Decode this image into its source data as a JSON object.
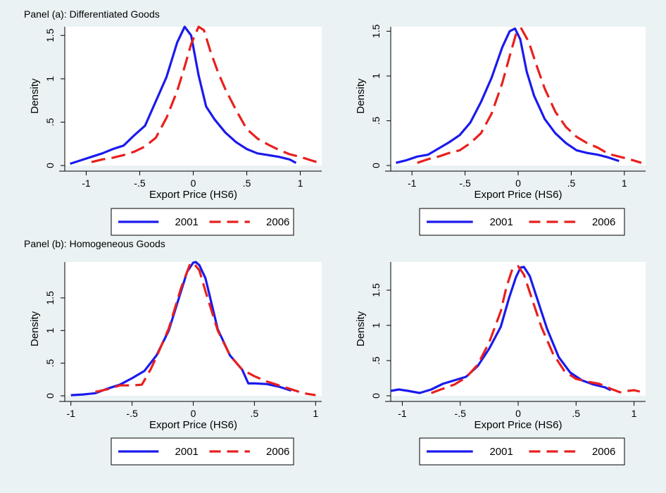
{
  "figure": {
    "panel_a_label": "Panel (a): Differentiated Goods",
    "panel_b_label": "Panel (b): Homogeneous Goods"
  },
  "colors": {
    "s2001": "#1a1aee",
    "s2006": "#e8201e",
    "background": "#eaf2f3",
    "plot_bg": "#ffffff"
  },
  "chart_data": [
    {
      "type": "line",
      "panel": "a",
      "xlabel": "Export Price (HS6)",
      "ylabel": "Density",
      "xticks": [
        -1,
        -0.5,
        0,
        0.5,
        1
      ],
      "xtick_labels": [
        "-1",
        "-.5",
        "0",
        ".5",
        "1"
      ],
      "yticks": [
        0,
        0.5,
        1,
        1.5
      ],
      "ytick_labels": [
        "0",
        ".5",
        "1",
        "1.5"
      ],
      "xlim": [
        -1.2,
        1.2
      ],
      "ylim": [
        0,
        1.6
      ],
      "grid": false,
      "legend": "bottom",
      "series": [
        {
          "name": "2001",
          "x": [
            -1.15,
            -1.05,
            -0.95,
            -0.85,
            -0.75,
            -0.65,
            -0.55,
            -0.45,
            -0.35,
            -0.25,
            -0.15,
            -0.08,
            -0.02,
            0.05,
            0.12,
            0.2,
            0.3,
            0.4,
            0.5,
            0.6,
            0.7,
            0.8,
            0.9,
            0.96
          ],
          "y": [
            0.02,
            0.06,
            0.1,
            0.14,
            0.19,
            0.23,
            0.35,
            0.46,
            0.74,
            1.02,
            1.42,
            1.6,
            1.5,
            1.04,
            0.68,
            0.53,
            0.38,
            0.27,
            0.19,
            0.14,
            0.12,
            0.1,
            0.07,
            0.03
          ]
        },
        {
          "name": "2006",
          "x": [
            -0.95,
            -0.85,
            -0.75,
            -0.65,
            -0.55,
            -0.45,
            -0.35,
            -0.25,
            -0.15,
            -0.08,
            -0.02,
            0.05,
            0.1,
            0.16,
            0.23,
            0.3,
            0.4,
            0.5,
            0.6,
            0.7,
            0.8,
            0.9,
            1.0,
            1.1,
            1.18
          ],
          "y": [
            0.04,
            0.07,
            0.09,
            0.12,
            0.16,
            0.22,
            0.32,
            0.55,
            0.86,
            1.14,
            1.4,
            1.6,
            1.56,
            1.32,
            1.08,
            0.88,
            0.64,
            0.42,
            0.31,
            0.24,
            0.18,
            0.13,
            0.1,
            0.06,
            0.03
          ]
        }
      ]
    },
    {
      "type": "line",
      "panel": "a",
      "xlabel": "Export Price (HS6)",
      "ylabel": "Density",
      "xticks": [
        -1,
        -0.5,
        0,
        0.5,
        1
      ],
      "xtick_labels": [
        "-1",
        "-.5",
        "0",
        ".5",
        "1"
      ],
      "yticks": [
        0,
        0.5,
        1,
        1.5
      ],
      "ytick_labels": [
        "0",
        ".5",
        "1",
        "1.5"
      ],
      "xlim": [
        -1.2,
        1.2
      ],
      "ylim": [
        0,
        1.55
      ],
      "grid": false,
      "legend": "bottom",
      "series": [
        {
          "name": "2001",
          "x": [
            -1.15,
            -1.05,
            -0.95,
            -0.85,
            -0.75,
            -0.65,
            -0.55,
            -0.45,
            -0.35,
            -0.25,
            -0.15,
            -0.08,
            -0.03,
            0.02,
            0.08,
            0.15,
            0.25,
            0.35,
            0.45,
            0.55,
            0.65,
            0.75,
            0.85,
            0.95
          ],
          "y": [
            0.03,
            0.06,
            0.1,
            0.12,
            0.19,
            0.26,
            0.34,
            0.48,
            0.71,
            0.98,
            1.32,
            1.5,
            1.53,
            1.41,
            1.05,
            0.78,
            0.52,
            0.36,
            0.25,
            0.17,
            0.14,
            0.12,
            0.09,
            0.05
          ]
        },
        {
          "name": "2006",
          "x": [
            -0.95,
            -0.85,
            -0.75,
            -0.65,
            -0.55,
            -0.45,
            -0.35,
            -0.25,
            -0.15,
            -0.08,
            -0.02,
            0.03,
            0.1,
            0.17,
            0.25,
            0.35,
            0.45,
            0.55,
            0.65,
            0.75,
            0.85,
            0.95,
            1.05,
            1.16
          ],
          "y": [
            0.03,
            0.07,
            0.1,
            0.14,
            0.17,
            0.25,
            0.36,
            0.58,
            0.92,
            1.22,
            1.47,
            1.53,
            1.38,
            1.13,
            0.86,
            0.6,
            0.43,
            0.32,
            0.25,
            0.2,
            0.13,
            0.1,
            0.07,
            0.03
          ]
        }
      ]
    },
    {
      "type": "line",
      "panel": "b",
      "xlabel": "Export Price (HS6)",
      "ylabel": "Density",
      "xticks": [
        -1,
        -0.5,
        0,
        0.5,
        1
      ],
      "xtick_labels": [
        "-1",
        "-.5",
        "0",
        ".5",
        "1"
      ],
      "yticks": [
        0,
        0.5,
        1,
        1.5
      ],
      "ytick_labels": [
        "0",
        ".5",
        "1",
        "1.5"
      ],
      "xlim": [
        -1.05,
        1.05
      ],
      "ylim": [
        0,
        2.05
      ],
      "grid": false,
      "legend": "bottom",
      "series": [
        {
          "name": "2001",
          "x": [
            -1.0,
            -0.9,
            -0.8,
            -0.7,
            -0.6,
            -0.5,
            -0.4,
            -0.3,
            -0.2,
            -0.1,
            -0.05,
            0.0,
            0.02,
            0.05,
            0.1,
            0.2,
            0.3,
            0.4,
            0.45,
            0.5,
            0.6,
            0.7,
            0.8
          ],
          "y": [
            0.01,
            0.02,
            0.04,
            0.11,
            0.17,
            0.27,
            0.38,
            0.62,
            1.0,
            1.6,
            1.9,
            2.04,
            2.05,
            2.0,
            1.8,
            1.02,
            0.62,
            0.4,
            0.19,
            0.19,
            0.18,
            0.14,
            0.08
          ]
        },
        {
          "name": "2006",
          "x": [
            -0.8,
            -0.7,
            -0.6,
            -0.5,
            -0.42,
            -0.35,
            -0.3,
            -0.2,
            -0.1,
            -0.03,
            0.0,
            0.05,
            0.1,
            0.2,
            0.3,
            0.4,
            0.5,
            0.6,
            0.7,
            0.8,
            0.9,
            1.0
          ],
          "y": [
            0.06,
            0.1,
            0.16,
            0.16,
            0.17,
            0.4,
            0.6,
            1.03,
            1.65,
            2.0,
            2.04,
            1.92,
            1.6,
            1.0,
            0.62,
            0.4,
            0.3,
            0.22,
            0.16,
            0.1,
            0.04,
            0.01
          ]
        }
      ]
    },
    {
      "type": "line",
      "panel": "b",
      "xlabel": "Export Price (HS6)",
      "ylabel": "Density",
      "xticks": [
        -1,
        -0.5,
        0,
        0.5,
        1
      ],
      "xtick_labels": [
        "-1",
        "-.5",
        "0",
        ".5",
        "1"
      ],
      "yticks": [
        0,
        0.5,
        1,
        1.5
      ],
      "ytick_labels": [
        "0",
        ".5",
        "1",
        "1.5"
      ],
      "xlim": [
        -1.1,
        1.1
      ],
      "ylim": [
        0,
        1.9
      ],
      "grid": false,
      "legend": "bottom",
      "series": [
        {
          "name": "2001",
          "x": [
            -1.1,
            -1.03,
            -0.95,
            -0.85,
            -0.75,
            -0.65,
            -0.55,
            -0.45,
            -0.35,
            -0.25,
            -0.15,
            -0.08,
            -0.02,
            0.02,
            0.05,
            0.1,
            0.18,
            0.25,
            0.35,
            0.45,
            0.55,
            0.65,
            0.75,
            0.8
          ],
          "y": [
            0.07,
            0.09,
            0.07,
            0.04,
            0.09,
            0.17,
            0.22,
            0.27,
            0.42,
            0.67,
            0.98,
            1.38,
            1.68,
            1.82,
            1.83,
            1.7,
            1.3,
            0.95,
            0.55,
            0.33,
            0.22,
            0.16,
            0.12,
            0.08
          ]
        },
        {
          "name": "2006",
          "x": [
            -0.75,
            -0.65,
            -0.55,
            -0.45,
            -0.35,
            -0.25,
            -0.15,
            -0.1,
            -0.05,
            0.0,
            0.05,
            0.1,
            0.2,
            0.3,
            0.4,
            0.5,
            0.6,
            0.7,
            0.8,
            0.88,
            0.95,
            1.0,
            1.05
          ],
          "y": [
            0.04,
            0.1,
            0.16,
            0.26,
            0.44,
            0.76,
            1.2,
            1.55,
            1.8,
            1.84,
            1.72,
            1.47,
            0.98,
            0.6,
            0.35,
            0.24,
            0.2,
            0.17,
            0.1,
            0.05,
            0.07,
            0.08,
            0.06
          ]
        }
      ]
    }
  ]
}
